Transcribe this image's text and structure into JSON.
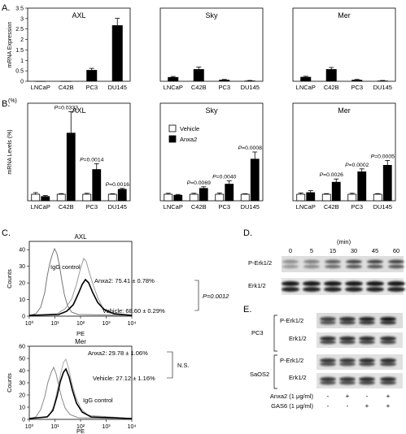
{
  "panels": {
    "A": "A.",
    "B": "B.",
    "C": "C.",
    "D": "D.",
    "E": "E."
  },
  "chart_data": [
    {
      "type": "bar",
      "panel": "A",
      "title": "AXL",
      "ylabel": "mRNA Expression",
      "ylim": [
        0,
        3.5
      ],
      "yticks": [
        "0",
        "0.5",
        "1",
        "1.5",
        "2",
        "2.5",
        "3",
        "3.5"
      ],
      "categories": [
        "LNCaP",
        "C42B",
        "PC3",
        "DU145"
      ],
      "values": [
        0.01,
        0.01,
        0.54,
        2.68
      ],
      "errors": [
        0,
        0,
        0.08,
        0.33
      ]
    },
    {
      "type": "bar",
      "panel": "A",
      "title": "Sky",
      "ylim": [
        0,
        3.5
      ],
      "categories": [
        "LNCaP",
        "C42B",
        "PC3",
        "DU145"
      ],
      "values": [
        0.2,
        0.58,
        0.07,
        0.03
      ],
      "errors": [
        0.03,
        0.1,
        0.02,
        0.01
      ]
    },
    {
      "type": "bar",
      "panel": "A",
      "title": "Mer",
      "ylim": [
        0,
        3.5
      ],
      "categories": [
        "LNCaP",
        "C42B",
        "PC3",
        "DU145"
      ],
      "values": [
        0.21,
        0.58,
        0.07,
        0.03
      ],
      "errors": [
        0.03,
        0.08,
        0.02,
        0.01
      ]
    },
    {
      "type": "bar",
      "panel": "B",
      "title": "AXL",
      "ylabel": "mRNA Levels (%)",
      "yunit": "(%)",
      "ylim": [
        0,
        1500
      ],
      "categories": [
        "LNCaP",
        "C42B",
        "PC3",
        "DU145"
      ],
      "series": [
        {
          "name": "Vehicle",
          "values": [
            100,
            100,
            100,
            100
          ],
          "errors": [
            25,
            10,
            15,
            8
          ]
        },
        {
          "name": "Anxa2",
          "values": [
            65,
            1040,
            480,
            175
          ],
          "errors": [
            15,
            330,
            90,
            15
          ]
        }
      ],
      "annotations": [
        "",
        "P=0.0332",
        "P=0.0014",
        "P=0.0016"
      ]
    },
    {
      "type": "bar",
      "panel": "B",
      "title": "Sky",
      "ylim": [
        0,
        1500
      ],
      "categories": [
        "LNCaP",
        "C42B",
        "PC3",
        "DU145"
      ],
      "series": [
        {
          "name": "Vehicle",
          "values": [
            100,
            100,
            100,
            100
          ],
          "errors": [
            15,
            15,
            20,
            8
          ]
        },
        {
          "name": "Anxa2",
          "values": [
            85,
            190,
            255,
            640
          ],
          "errors": [
            12,
            25,
            50,
            110
          ]
        }
      ],
      "annotations": [
        "",
        "P=0.0069",
        "P=0.0040",
        "P=0.0008"
      ]
    },
    {
      "type": "bar",
      "panel": "B",
      "title": "Mer",
      "ylim": [
        0,
        1500
      ],
      "categories": [
        "LNCaP",
        "C42B",
        "PC3",
        "DU145"
      ],
      "series": [
        {
          "name": "Vehicle",
          "values": [
            100,
            100,
            100,
            100
          ],
          "errors": [
            20,
            10,
            15,
            10
          ]
        },
        {
          "name": "Anxa2",
          "values": [
            125,
            285,
            445,
            545
          ],
          "errors": [
            30,
            50,
            45,
            75
          ]
        }
      ],
      "annotations": [
        "",
        "P=0.0026",
        "P=0.0002",
        "P=0.0005"
      ]
    },
    {
      "type": "line",
      "panel": "C",
      "title": "AXL",
      "xlabel": "PE",
      "ylabel": "Counts",
      "xscale": "log",
      "xticks": [
        "10⁰",
        "10¹",
        "10²",
        "10³",
        "10⁴"
      ],
      "yticks": [
        "0",
        "10",
        "20",
        "30",
        "40"
      ],
      "ylim": [
        0,
        45
      ],
      "annotations": [
        "IgG control",
        "Anxa2: 75.41 ± 0.78%",
        "Vehicle: 68.60 ± 0.29%"
      ],
      "pvalue": "P=0.0012"
    },
    {
      "type": "line",
      "panel": "C",
      "title": "Mer",
      "xlabel": "PE",
      "ylabel": "Counts",
      "xscale": "log",
      "xticks": [
        "10⁰",
        "10¹",
        "10²",
        "10³",
        "10⁴"
      ],
      "yticks": [
        "0",
        "10",
        "20",
        "30",
        "40",
        "50",
        "60"
      ],
      "ylim": [
        0,
        60
      ],
      "annotations": [
        "Anxa2: 29.78 ± 1.06%",
        "Vehicle: 27.12 ± 1.16%",
        "IgG control"
      ],
      "pvalue": "N.S."
    }
  ],
  "legend": {
    "vehicle": "Vehicle",
    "anxa2": "Anxa2"
  },
  "blotD": {
    "unit": "(min)",
    "times": [
      "0",
      "5",
      "15",
      "30",
      "45",
      "60"
    ],
    "rows": [
      "P-Erk1/2",
      "Erk1/2"
    ]
  },
  "blotE": {
    "groups": [
      {
        "cell": "PC3",
        "rows": [
          "P-Erk1/2",
          "Erk1/2"
        ]
      },
      {
        "cell": "SaOS2",
        "rows": [
          "P-Erk1/2",
          "Erk1/2"
        ]
      }
    ],
    "treatments": [
      {
        "label": "Anxa2 (1 μg/ml)",
        "signs": [
          "-",
          "+",
          "-",
          "+"
        ]
      },
      {
        "label": "GAS6 (1 μg/ml)",
        "signs": [
          "-",
          "-",
          "+",
          "+"
        ]
      }
    ]
  }
}
